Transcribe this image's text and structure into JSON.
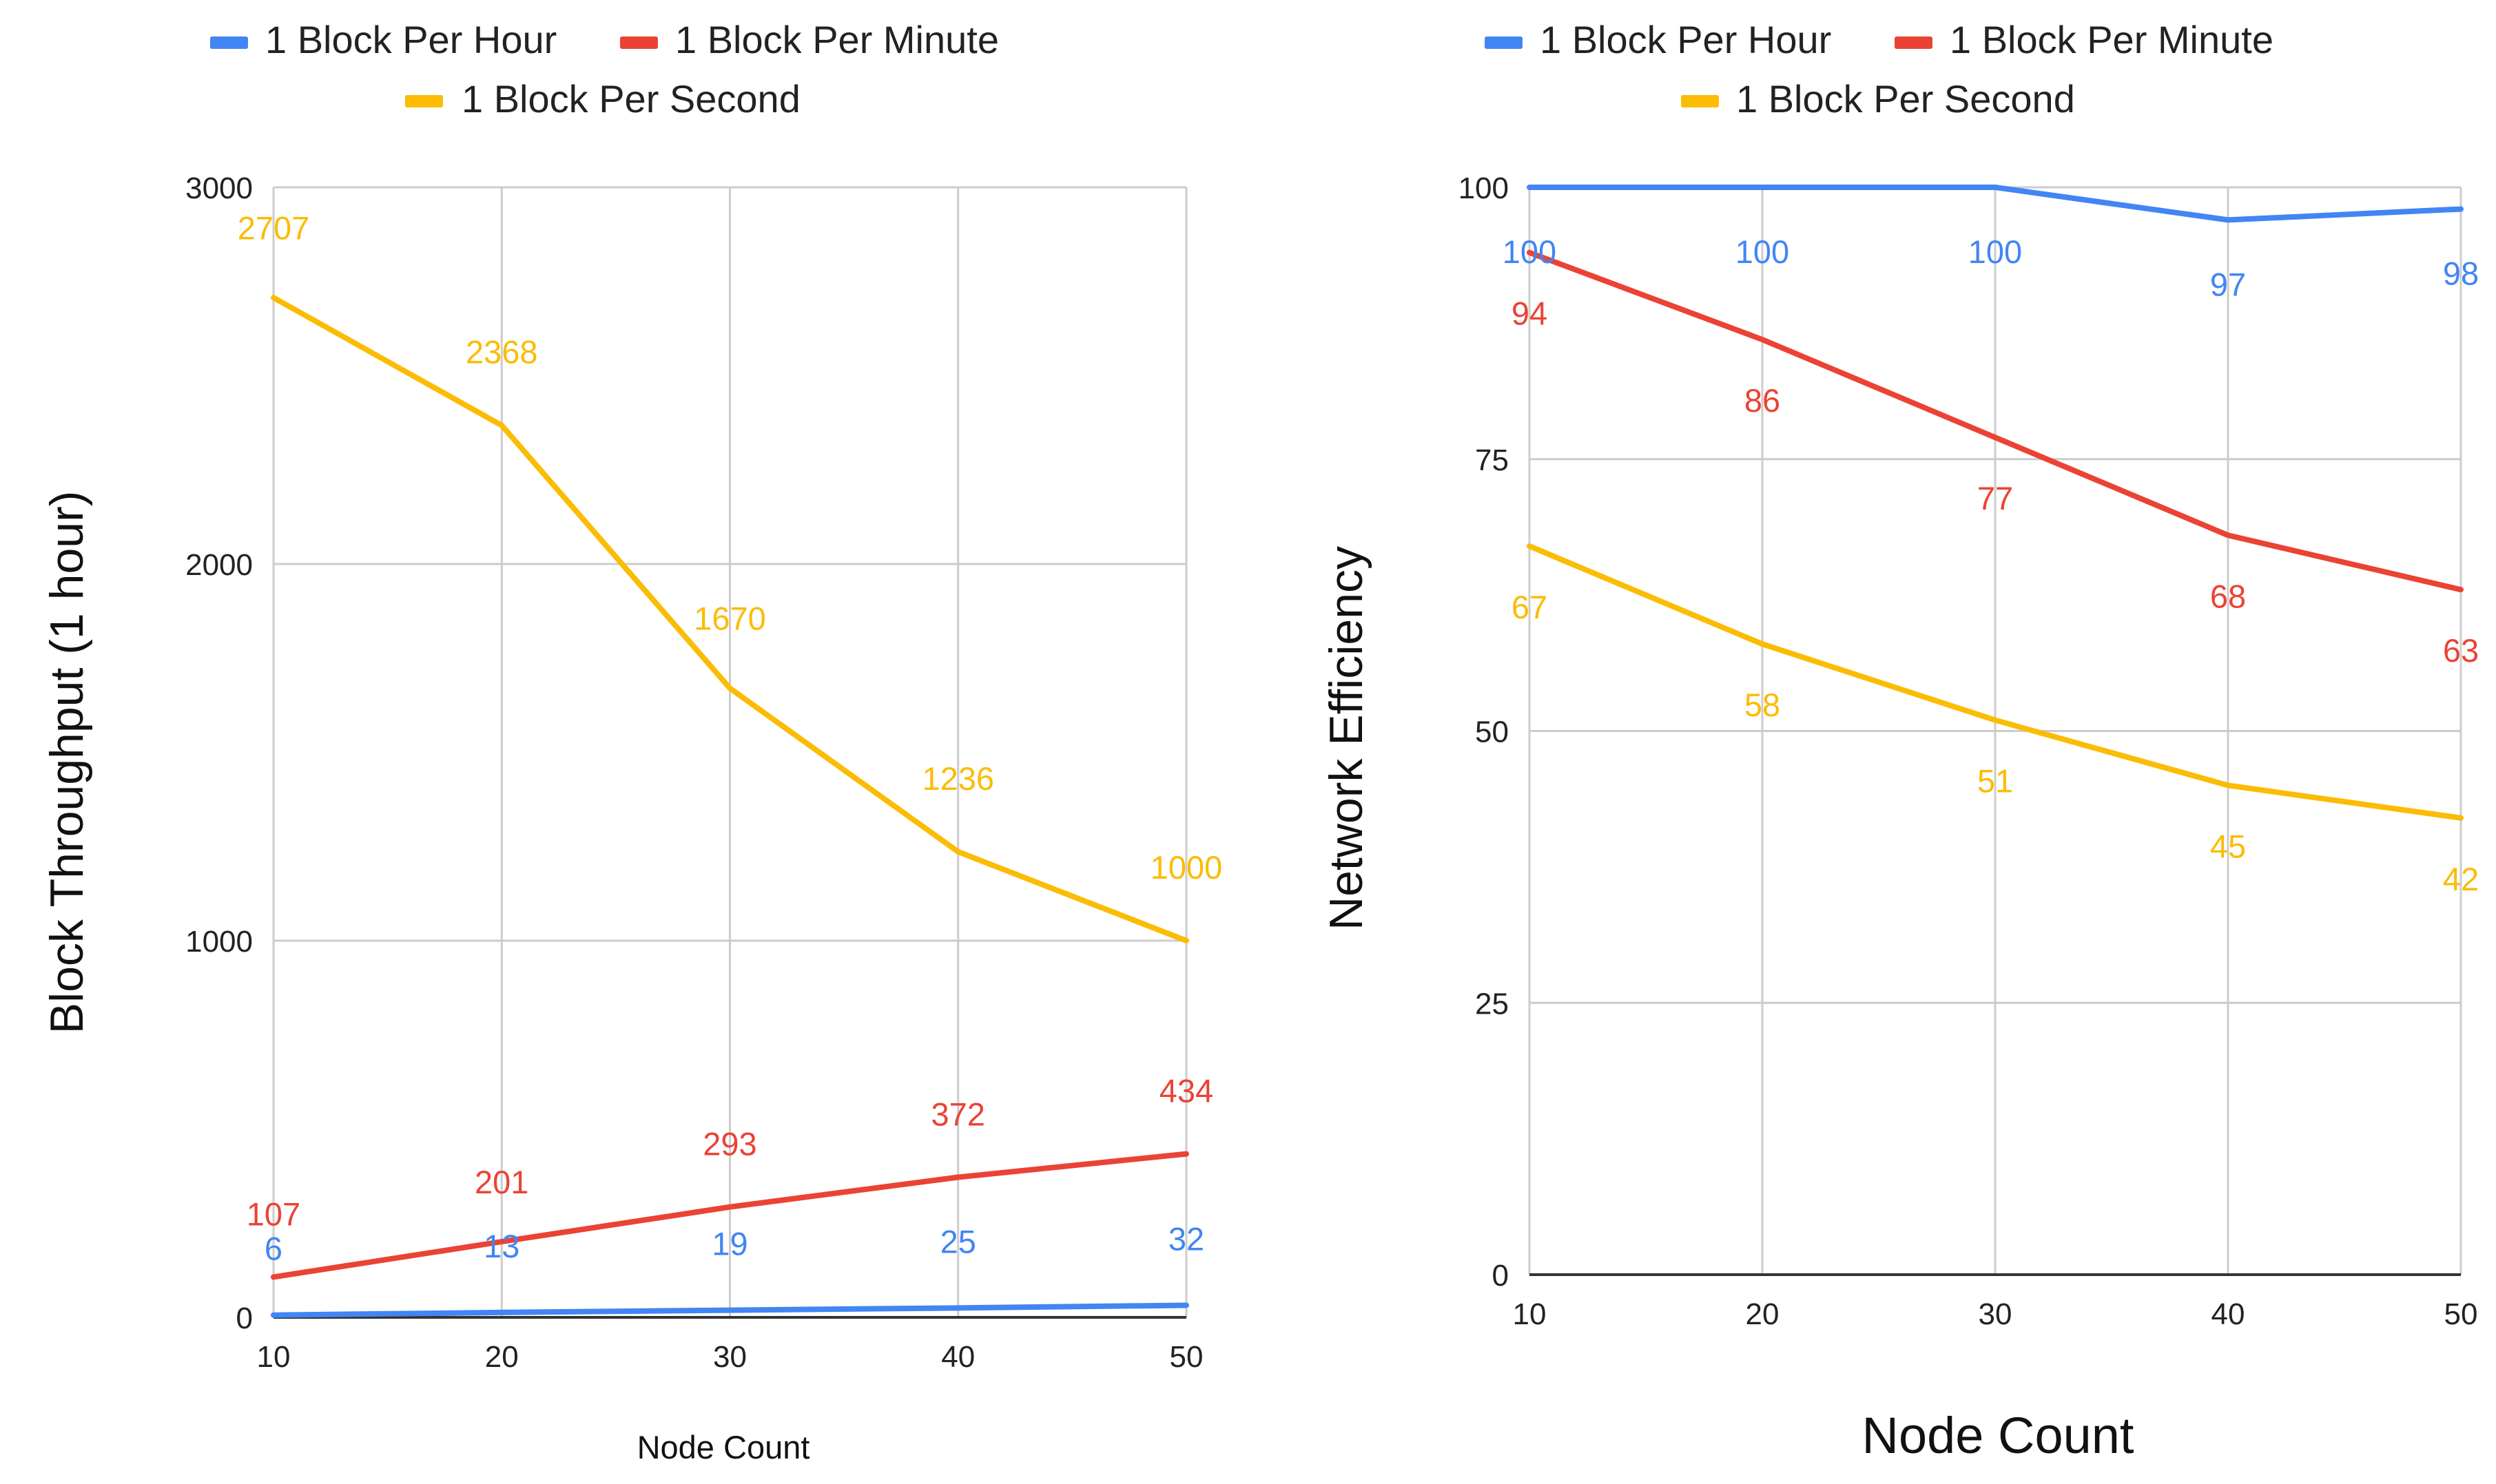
{
  "chart_data": [
    {
      "type": "line",
      "title": "",
      "xlabel": "Node Count",
      "ylabel": "Block Throughput (1 hour)",
      "x": [
        10,
        20,
        30,
        40,
        50
      ],
      "xticks": [
        "10",
        "20",
        "30",
        "40",
        "50"
      ],
      "yticks": [
        "0",
        "1000",
        "2000",
        "3000"
      ],
      "ylim": [
        0,
        3000
      ],
      "grid": true,
      "legend_position": "top",
      "series": [
        {
          "name": "1 Block Per Hour",
          "color": "#4285F4",
          "values": [
            6,
            13,
            19,
            25,
            32
          ],
          "labels": [
            "6",
            "13",
            "19",
            "25",
            "32"
          ]
        },
        {
          "name": "1 Block Per Minute",
          "color": "#EA4335",
          "values": [
            107,
            201,
            293,
            372,
            434
          ],
          "labels": [
            "107",
            "201",
            "293",
            "372",
            "434"
          ]
        },
        {
          "name": "1 Block Per Second",
          "color": "#FBBC04",
          "values": [
            2707,
            2368,
            1670,
            1236,
            1000
          ],
          "labels": [
            "2707",
            "2368",
            "1670",
            "1236",
            "1000"
          ]
        }
      ]
    },
    {
      "type": "line",
      "title": "",
      "xlabel": "Node Count",
      "ylabel": "Network Efficiency",
      "x": [
        10,
        20,
        30,
        40,
        50
      ],
      "xticks": [
        "10",
        "20",
        "30",
        "40",
        "50"
      ],
      "yticks": [
        "0",
        "25",
        "50",
        "75",
        "100"
      ],
      "ylim": [
        0,
        100
      ],
      "grid": true,
      "legend_position": "top",
      "series": [
        {
          "name": "1 Block Per Hour",
          "color": "#4285F4",
          "values": [
            100,
            100,
            100,
            97,
            98
          ],
          "labels": [
            "100",
            "100",
            "100",
            "97",
            "98"
          ]
        },
        {
          "name": "1 Block Per Minute",
          "color": "#EA4335",
          "values": [
            94,
            86,
            77,
            68,
            63
          ],
          "labels": [
            "94",
            "86",
            "77",
            "68",
            "63"
          ]
        },
        {
          "name": "1 Block Per Second",
          "color": "#FBBC04",
          "values": [
            67,
            58,
            51,
            45,
            42
          ],
          "labels": [
            "67",
            "58",
            "51",
            "45",
            "42"
          ]
        }
      ]
    }
  ]
}
